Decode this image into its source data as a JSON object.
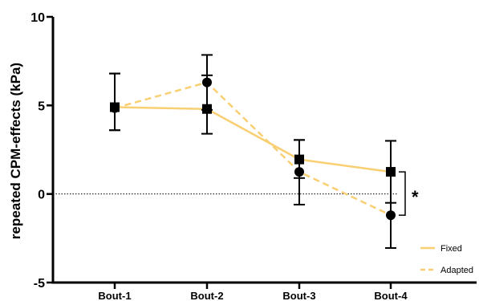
{
  "chart_data": {
    "type": "line",
    "title": "",
    "xlabel": "",
    "ylabel": "repeated CPM-effects (kPa)",
    "categories": [
      "Bout-1",
      "Bout-2",
      "Bout-3",
      "Bout-4"
    ],
    "ylim": [
      -5,
      10
    ],
    "yticks": [
      -5,
      0,
      5,
      10
    ],
    "ytick_labels": [
      "-5",
      "0",
      "5",
      "10"
    ],
    "reference_line": {
      "y": 0,
      "style": "dotted"
    },
    "grid": false,
    "legend_position": "bottom-right",
    "series": [
      {
        "name": "Fixed",
        "values": [
          4.9,
          4.8,
          1.95,
          1.25
        ],
        "err_high": [
          6.8,
          6.7,
          3.05,
          3.0
        ],
        "err_low": [
          3.6,
          3.4,
          0.9,
          -0.5
        ],
        "marker": "square",
        "line_style": "solid",
        "color": "#f9cf73"
      },
      {
        "name": "Adapted",
        "values": [
          4.85,
          6.3,
          1.25,
          -1.2
        ],
        "err_high": [
          6.8,
          7.85,
          3.05,
          3.0
        ],
        "err_low": [
          3.6,
          4.75,
          -0.6,
          -3.05
        ],
        "marker": "circle",
        "line_style": "dashed",
        "color": "#f9cf73"
      }
    ],
    "annotation": {
      "text": "*",
      "between": [
        "Fixed",
        "Adapted"
      ],
      "category": "Bout-4"
    }
  }
}
